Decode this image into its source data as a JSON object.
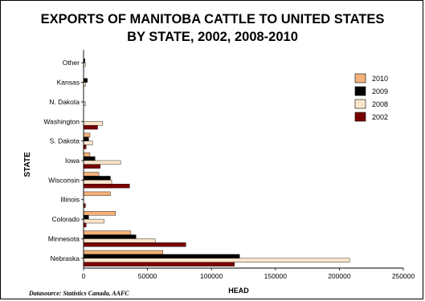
{
  "chart_data": {
    "type": "bar",
    "orientation": "horizontal",
    "title": [
      "EXPORTS OF MANITOBA CATTLE TO UNITED STATES",
      "BY STATE, 2002, 2008-2010"
    ],
    "xlabel": "HEAD",
    "ylabel": "STATE",
    "xlim": [
      0,
      250000
    ],
    "xticks": [
      0,
      50000,
      100000,
      150000,
      200000,
      250000
    ],
    "categories": [
      "Nebraska",
      "Minnesota",
      "Colorado",
      "Illinois",
      "Wisconsin",
      "Iowa",
      "S. Dakota",
      "Washington",
      "N. Dakota",
      "Kansas",
      "Other"
    ],
    "series": [
      {
        "name": "2010",
        "color": "#f5b27a",
        "values": [
          62000,
          37000,
          25000,
          21000,
          12000,
          5000,
          5000,
          0,
          0,
          0,
          0
        ]
      },
      {
        "name": "2009",
        "color": "#000000",
        "values": [
          122000,
          41000,
          4000,
          0,
          21000,
          9000,
          4000,
          0,
          0,
          3000,
          1000
        ]
      },
      {
        "name": "2008",
        "color": "#fde5cc",
        "values": [
          208000,
          56000,
          16000,
          0,
          22000,
          29000,
          7000,
          15000,
          1500,
          1500,
          1500
        ]
      },
      {
        "name": "2002",
        "color": "#7a0000",
        "values": [
          118000,
          80000,
          2000,
          1500,
          36000,
          13000,
          2000,
          11000,
          0,
          0,
          0
        ]
      }
    ],
    "legend_position": "right",
    "grid": false,
    "source": "Datasource: Statistics Canada, AAFC"
  }
}
